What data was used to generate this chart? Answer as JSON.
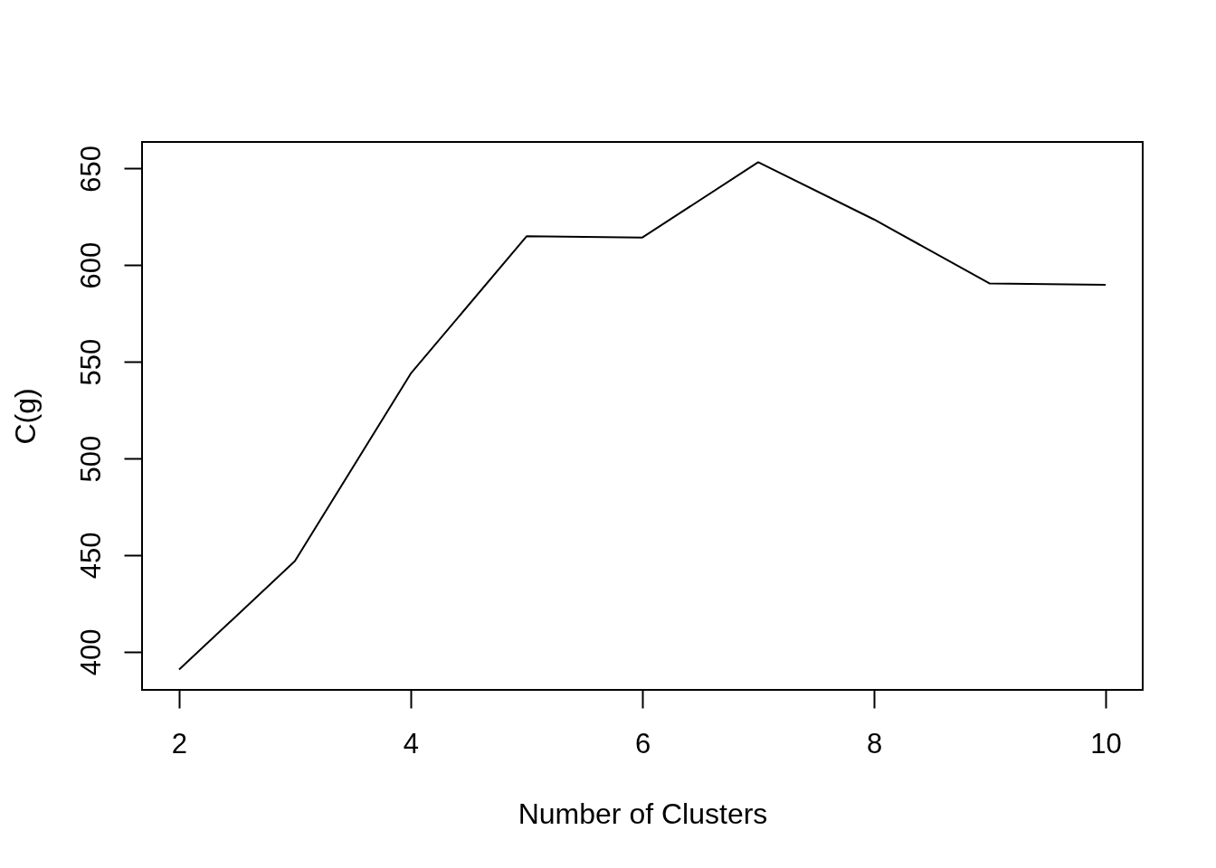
{
  "chart_data": {
    "type": "line",
    "xlabel": "Number of Clusters",
    "ylabel": "C(g)",
    "x": [
      2,
      3,
      4,
      5,
      6,
      7,
      8,
      9,
      10
    ],
    "series": [
      {
        "color": "#000000",
        "values": [
          390.8,
          446.9,
          543.9,
          614.9,
          614.3,
          653.2,
          623.6,
          590.5,
          589.8
        ]
      }
    ],
    "xlim": [
      1.68,
      10.32
    ],
    "ylim": [
      380.3,
      663.7
    ],
    "xticks": [
      2,
      4,
      6,
      8,
      10
    ],
    "yticks": [
      400,
      450,
      500,
      550,
      600,
      650
    ],
    "grid": false
  }
}
